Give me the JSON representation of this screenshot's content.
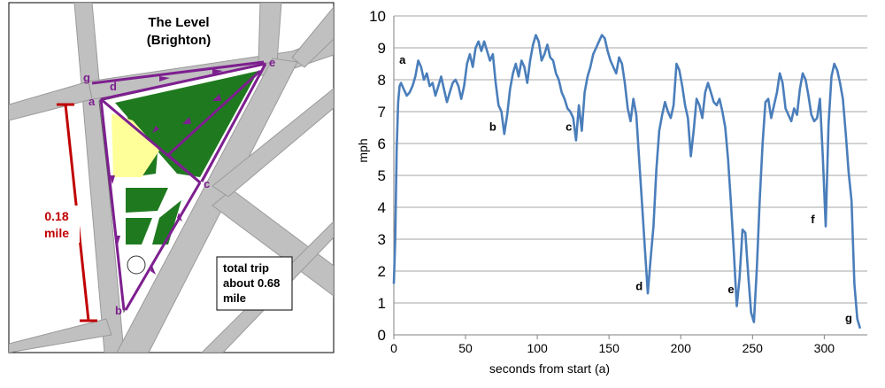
{
  "map": {
    "title_line1": "The Level",
    "title_line2": "(Brighton)",
    "distance_value": "0.18",
    "distance_unit": "mile",
    "trip_line1": "total trip",
    "trip_line2": "about 0.68",
    "trip_line3": "mile",
    "waypoints": [
      "g",
      "d",
      "a",
      "e",
      "c",
      "b"
    ],
    "colors": {
      "road": "#c0c0c0",
      "park": "#1f7a1f",
      "path": "#7d1f8f",
      "distance": "#c00000",
      "highlight": "#ffff99"
    }
  },
  "chart_data": {
    "type": "line",
    "xlabel": "seconds from start (a)",
    "ylabel": "mph",
    "xlim": [
      0,
      330
    ],
    "ylim": [
      0,
      10
    ],
    "xticks": [
      0,
      50,
      100,
      150,
      200,
      250,
      300
    ],
    "yticks": [
      0,
      1,
      2,
      3,
      4,
      5,
      6,
      7,
      8,
      9,
      10
    ],
    "grid": "horizontal",
    "line_color": "#4a7ebb",
    "series": [
      {
        "x": [
          0,
          1,
          2,
          3,
          4,
          5,
          7,
          9,
          11,
          13,
          15,
          17,
          19,
          21,
          23,
          25,
          27,
          29,
          31,
          33,
          35,
          37,
          39,
          41,
          43,
          45,
          47,
          49,
          51,
          53,
          55,
          57,
          59,
          61,
          63,
          65,
          67,
          69,
          71,
          73,
          75,
          77,
          79,
          81,
          83,
          85,
          87,
          89,
          91,
          93,
          95,
          97,
          99,
          101,
          103,
          105,
          107,
          109,
          111,
          113,
          115,
          117,
          119,
          121,
          123,
          125,
          127,
          129,
          131,
          133,
          135,
          137,
          139,
          141,
          143,
          145,
          147,
          149,
          151,
          153,
          155,
          157,
          159,
          161,
          163,
          165,
          167,
          169,
          171,
          173,
          175,
          177,
          179,
          181,
          183,
          185,
          187,
          189,
          191,
          193,
          195,
          197,
          199,
          201,
          203,
          205,
          207,
          209,
          211,
          213,
          215,
          217,
          219,
          221,
          223,
          225,
          227,
          229,
          231,
          233,
          235,
          237,
          239,
          241,
          243,
          245,
          247,
          249,
          251,
          253,
          255,
          257,
          259,
          261,
          263,
          265,
          267,
          269,
          271,
          273,
          275,
          277,
          279,
          281,
          283,
          285,
          287,
          289,
          291,
          293,
          295,
          297,
          299,
          301,
          303,
          305,
          307,
          309,
          311,
          313,
          315,
          317,
          319,
          321,
          323,
          325
        ],
        "y": [
          1.6,
          3.0,
          5.8,
          7.3,
          7.8,
          7.9,
          7.7,
          7.5,
          7.6,
          7.8,
          8.1,
          8.6,
          8.4,
          8.0,
          8.2,
          7.8,
          7.9,
          7.5,
          7.8,
          8.1,
          7.7,
          7.3,
          7.6,
          7.9,
          8.0,
          7.8,
          7.4,
          7.8,
          8.5,
          8.8,
          8.4,
          9.0,
          9.2,
          8.9,
          9.2,
          8.9,
          8.6,
          8.8,
          7.9,
          7.2,
          7.0,
          6.3,
          6.9,
          7.7,
          8.2,
          8.5,
          8.1,
          8.6,
          8.4,
          7.9,
          8.6,
          9.1,
          9.4,
          9.2,
          8.6,
          8.8,
          9.1,
          8.7,
          8.6,
          8.2,
          8.0,
          7.6,
          7.4,
          7.1,
          7.0,
          6.8,
          6.1,
          7.2,
          6.4,
          7.6,
          8.1,
          8.4,
          8.8,
          9.0,
          9.2,
          9.4,
          9.3,
          8.9,
          8.6,
          8.4,
          8.2,
          8.7,
          8.5,
          7.9,
          7.1,
          6.7,
          7.4,
          6.9,
          5.5,
          4.1,
          2.7,
          1.3,
          2.4,
          3.4,
          5.2,
          6.4,
          6.9,
          7.3,
          7.0,
          6.8,
          7.2,
          8.5,
          8.3,
          7.8,
          7.2,
          6.8,
          5.6,
          6.4,
          7.4,
          7.2,
          6.8,
          7.6,
          7.9,
          7.6,
          7.3,
          7.2,
          7.4,
          7.0,
          6.5,
          5.5,
          4.1,
          2.6,
          0.9,
          1.8,
          3.3,
          3.2,
          1.9,
          0.7,
          0.4,
          2.1,
          4.2,
          6.0,
          7.3,
          7.4,
          6.8,
          7.2,
          7.6,
          8.2,
          7.9,
          7.1,
          6.9,
          6.7,
          7.1,
          6.9,
          7.7,
          8.2,
          8.0,
          7.5,
          6.9,
          6.7,
          6.8,
          7.4,
          5.6,
          3.4,
          6.6,
          8.1,
          8.5,
          8.3,
          7.9,
          7.4,
          6.3,
          5.1,
          4.2,
          1.6,
          0.5,
          0.2
        ]
      }
    ],
    "annotations": [
      {
        "text": "a",
        "x": 6,
        "y": 8.5
      },
      {
        "text": "b",
        "x": 69,
        "y": 6.4
      },
      {
        "text": "c",
        "x": 122,
        "y": 6.4
      },
      {
        "text": "d",
        "x": 171,
        "y": 1.4
      },
      {
        "text": "e",
        "x": 235,
        "y": 1.3
      },
      {
        "text": "f",
        "x": 292,
        "y": 3.5
      },
      {
        "text": "g",
        "x": 317,
        "y": 0.4
      }
    ]
  }
}
